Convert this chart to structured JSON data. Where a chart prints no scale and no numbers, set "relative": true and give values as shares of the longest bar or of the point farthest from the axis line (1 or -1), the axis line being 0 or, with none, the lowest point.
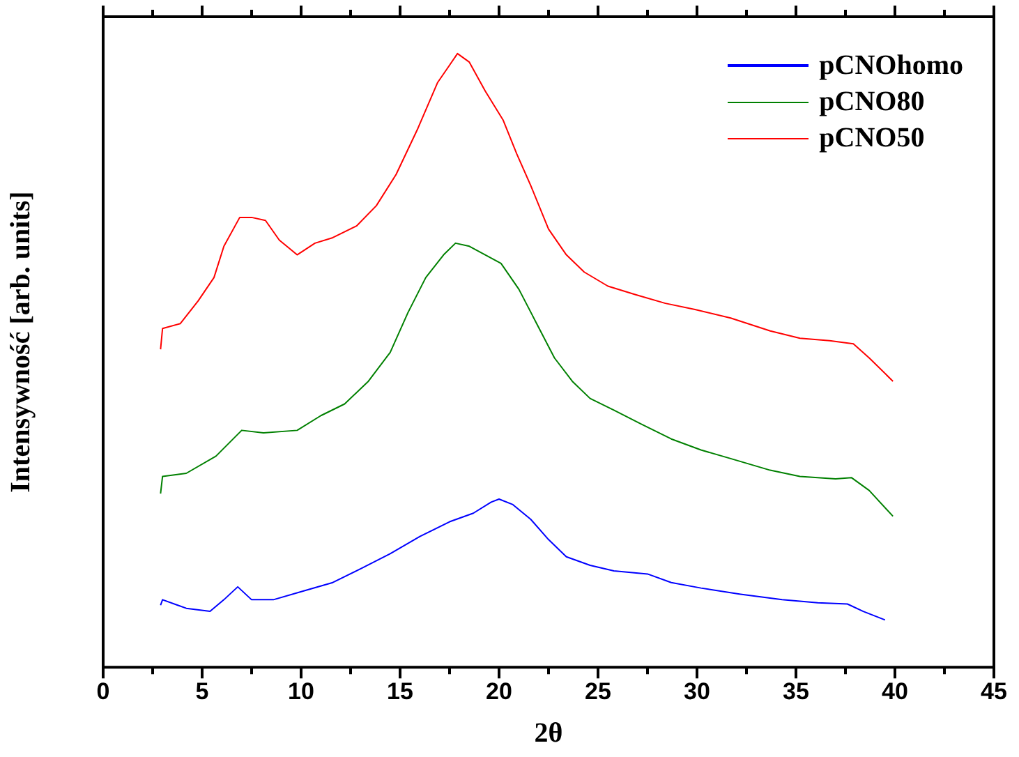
{
  "chart_data": {
    "type": "line",
    "relative": true,
    "xlabel": "2θ",
    "ylabel": "Intensywność [arb. units]",
    "xlim": [
      0,
      45
    ],
    "xticks": [
      0,
      5,
      10,
      15,
      20,
      25,
      30,
      35,
      40,
      45
    ],
    "grid": false,
    "legend": "top right",
    "marker": "none",
    "line_style": "solid",
    "series": [
      {
        "name": "pCNOhomo",
        "color": "#0000ff",
        "x": [
          2.9,
          3.0,
          4.2,
          5.4,
          6.1,
          6.8,
          7.5,
          8.6,
          10.1,
          11.6,
          13.1,
          14.5,
          16.0,
          17.5,
          18.7,
          19.6,
          20.0,
          20.7,
          21.6,
          22.5,
          23.4,
          24.6,
          25.8,
          27.5,
          28.7,
          30.2,
          32.2,
          34.3,
          36.1,
          37.6,
          38.4,
          39.5
        ],
        "values": [
          0.101,
          0.11,
          0.096,
          0.091,
          0.11,
          0.131,
          0.11,
          0.11,
          0.124,
          0.138,
          0.162,
          0.185,
          0.213,
          0.237,
          0.251,
          0.269,
          0.274,
          0.265,
          0.241,
          0.208,
          0.18,
          0.166,
          0.157,
          0.152,
          0.138,
          0.129,
          0.119,
          0.11,
          0.105,
          0.103,
          0.091,
          0.077
        ]
      },
      {
        "name": "pCNO80",
        "color": "#008000",
        "x": [
          2.9,
          3.0,
          4.2,
          5.7,
          7.0,
          8.1,
          9.8,
          11.0,
          12.2,
          13.4,
          14.5,
          15.4,
          16.3,
          17.2,
          17.8,
          18.5,
          19.3,
          20.1,
          21.0,
          21.9,
          22.8,
          23.7,
          24.6,
          25.8,
          27.2,
          28.7,
          30.2,
          31.7,
          33.7,
          35.2,
          37.0,
          37.8,
          38.7,
          39.9
        ],
        "values": [
          0.283,
          0.311,
          0.316,
          0.344,
          0.386,
          0.382,
          0.386,
          0.41,
          0.429,
          0.466,
          0.513,
          0.578,
          0.635,
          0.672,
          0.691,
          0.686,
          0.672,
          0.658,
          0.616,
          0.56,
          0.504,
          0.466,
          0.438,
          0.419,
          0.396,
          0.372,
          0.354,
          0.34,
          0.321,
          0.311,
          0.307,
          0.309,
          0.288,
          0.246
        ]
      },
      {
        "name": "pCNO50",
        "color": "#ff0000",
        "x": [
          2.9,
          3.0,
          3.9,
          4.8,
          5.6,
          6.1,
          6.9,
          7.5,
          8.2,
          8.9,
          9.8,
          10.7,
          11.6,
          12.8,
          13.8,
          14.8,
          15.9,
          16.9,
          17.5,
          17.9,
          18.5,
          19.3,
          20.2,
          20.9,
          21.6,
          22.5,
          23.4,
          24.3,
          25.5,
          26.9,
          28.4,
          29.9,
          31.7,
          33.7,
          35.2,
          36.7,
          37.9,
          38.7,
          39.9
        ],
        "values": [
          0.518,
          0.552,
          0.56,
          0.597,
          0.635,
          0.686,
          0.733,
          0.733,
          0.728,
          0.696,
          0.672,
          0.691,
          0.7,
          0.719,
          0.752,
          0.803,
          0.878,
          0.953,
          0.981,
          1,
          0.986,
          0.939,
          0.892,
          0.836,
          0.785,
          0.714,
          0.672,
          0.644,
          0.621,
          0.607,
          0.593,
          0.583,
          0.569,
          0.548,
          0.536,
          0.532,
          0.527,
          0.504,
          0.466
        ]
      }
    ]
  }
}
